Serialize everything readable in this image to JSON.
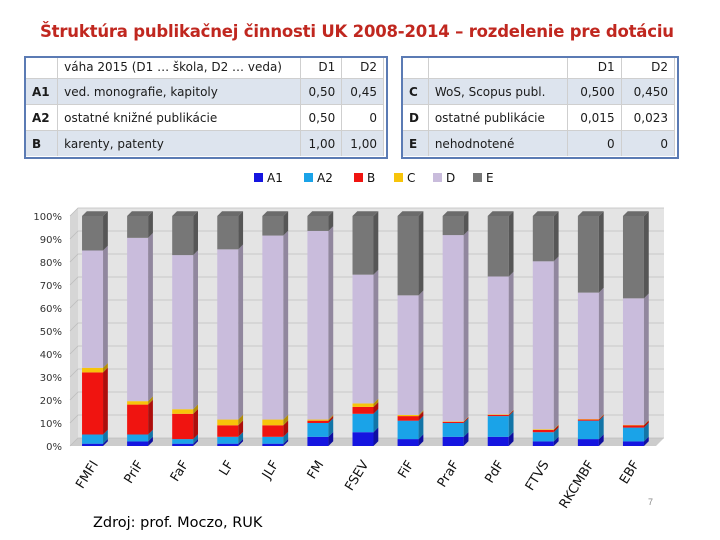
{
  "title": "Štruktúra publikačnej činnosti UK 2008-2014 – rozdelenie pre dotáciu",
  "weights_table": {
    "left": {
      "header": {
        "code": "",
        "label": "váha 2015 (D1 … škola, D2 … veda)",
        "d1": "D1",
        "d2": "D2"
      },
      "rows": [
        {
          "code": "A1",
          "label": "ved. monografie, kapitoly",
          "d1": "0,50",
          "d2": "0,45"
        },
        {
          "code": "A2",
          "label": "ostatné knižné publikácie",
          "d1": "0,50",
          "d2": "0"
        },
        {
          "code": "B",
          "label": "karenty, patenty",
          "d1": "1,00",
          "d2": "1,00"
        }
      ]
    },
    "right": {
      "header": {
        "code": "",
        "label": "",
        "d1": "D1",
        "d2": "D2"
      },
      "rows": [
        {
          "code": "C",
          "label": "WoS, Scopus publ.",
          "d1": "0,500",
          "d2": "0,450"
        },
        {
          "code": "D",
          "label": "ostatné publikácie",
          "d1": "0,015",
          "d2": "0,023"
        },
        {
          "code": "E",
          "label": "nehodnotené",
          "d1": "0",
          "d2": "0"
        }
      ]
    }
  },
  "colors": {
    "title": "#c0271f",
    "A1": "#1515e0",
    "A2": "#1aa3e8",
    "B": "#f01410",
    "C": "#f7c40a",
    "D": "#c9bcdc",
    "E": "#777777",
    "plot_bg": "#e4e4e4"
  },
  "chart_data": {
    "type": "bar",
    "stacked": true,
    "percent": true,
    "title": "",
    "xlabel": "",
    "ylabel": "",
    "ylim": [
      0,
      100
    ],
    "y_ticks": [
      "0%",
      "10%",
      "20%",
      "30%",
      "40%",
      "50%",
      "60%",
      "70%",
      "80%",
      "90%",
      "100%"
    ],
    "legend_position": "top",
    "categories": [
      "FMFI",
      "PriF",
      "FaF",
      "LF",
      "JLF",
      "FM",
      "FSEV",
      "FiF",
      "PraF",
      "PdF",
      "FTVS",
      "RKCMBF",
      "EBF"
    ],
    "series": [
      {
        "name": "A1",
        "key": "A1",
        "values": [
          1,
          2,
          1,
          1,
          1,
          4,
          6,
          3,
          4,
          4,
          2,
          3,
          2
        ]
      },
      {
        "name": "A2",
        "key": "A2",
        "values": [
          4,
          3,
          2,
          3,
          3,
          6,
          8,
          8,
          6,
          9,
          4,
          8,
          6
        ]
      },
      {
        "name": "B",
        "key": "B",
        "values": [
          27,
          13,
          11,
          5,
          5,
          1,
          3,
          2,
          0.5,
          0.5,
          1,
          0.5,
          1
        ]
      },
      {
        "name": "C",
        "key": "C",
        "values": [
          2,
          1.5,
          2,
          2.5,
          2.5,
          0.5,
          1.5,
          0.5,
          0.2,
          0.2,
          0.3,
          0.2,
          0.2
        ]
      },
      {
        "name": "D",
        "key": "D",
        "values": [
          51,
          71,
          67,
          74,
          80,
          82,
          56,
          52,
          81,
          60,
          73,
          55,
          55
        ]
      },
      {
        "name": "E",
        "key": "E",
        "values": [
          15,
          9.5,
          17,
          14.5,
          8.5,
          6.5,
          25.5,
          34.5,
          8.3,
          26.3,
          19.7,
          33.3,
          35.8
        ]
      }
    ]
  },
  "source": "Zdroj: prof. Moczo, RUK",
  "page_number": "7"
}
